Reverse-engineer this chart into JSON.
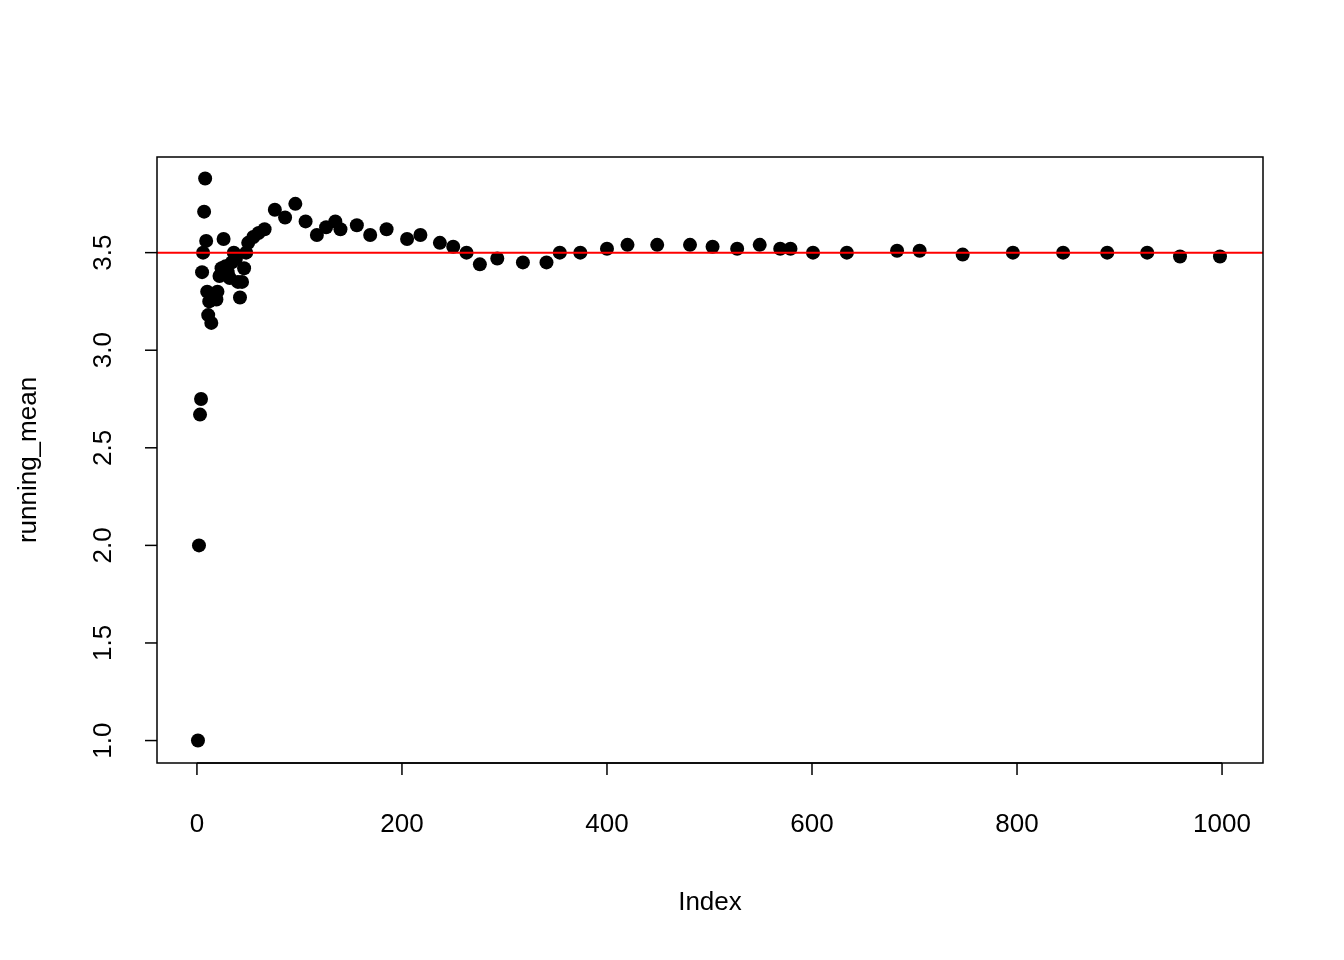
{
  "chart_data": {
    "type": "scatter",
    "xlabel": "Index",
    "ylabel": "running_mean",
    "marker": "circle",
    "xlim": [
      -38.96,
      1039.96
    ],
    "ylim": [
      0.885,
      3.99
    ],
    "xticks": [
      0,
      200,
      400,
      600,
      800,
      1000
    ],
    "yticks": [
      {
        "value": 1,
        "label": "1.0"
      },
      {
        "value": 1.5,
        "label": "1.5"
      },
      {
        "value": 2,
        "label": "2.0"
      },
      {
        "value": 2.5,
        "label": "2.5"
      },
      {
        "value": 3,
        "label": "3.0"
      },
      {
        "value": 3.5,
        "label": "3.5"
      }
    ],
    "ref_lines": [
      {
        "axis": "y",
        "value": 3.5,
        "color": "#ff0000"
      }
    ],
    "series": [
      {
        "color": "#000000",
        "x": [
          1,
          2,
          3,
          4,
          5,
          6,
          7,
          8,
          9,
          10,
          11,
          12,
          14,
          19,
          20,
          22,
          24,
          26,
          28,
          30,
          32,
          34,
          36,
          38,
          40,
          42,
          44,
          46,
          48,
          50,
          55,
          60,
          66,
          76,
          86,
          96,
          106,
          117,
          126,
          135,
          140,
          156,
          169,
          185,
          205,
          218,
          237,
          250,
          263,
          276,
          293,
          318,
          341,
          354,
          374,
          400,
          420,
          449,
          481,
          503,
          527,
          549,
          569,
          579,
          601,
          634,
          683,
          705,
          747,
          796,
          845,
          888,
          927,
          959,
          998
        ],
        "values": [
          1,
          2,
          2.67,
          2.75,
          3.4,
          3.5,
          3.71,
          3.88,
          3.56,
          3.3,
          3.18,
          3.25,
          3.14,
          3.26,
          3.3,
          3.38,
          3.42,
          3.57,
          3.43,
          3.4,
          3.37,
          3.45,
          3.5,
          3.47,
          3.35,
          3.27,
          3.35,
          3.42,
          3.5,
          3.55,
          3.58,
          3.6,
          3.62,
          3.72,
          3.68,
          3.75,
          3.66,
          3.59,
          3.63,
          3.66,
          3.62,
          3.64,
          3.59,
          3.62,
          3.57,
          3.59,
          3.55,
          3.53,
          3.5,
          3.44,
          3.47,
          3.45,
          3.45,
          3.5,
          3.5,
          3.52,
          3.54,
          3.54,
          3.54,
          3.53,
          3.52,
          3.54,
          3.52,
          3.52,
          3.5,
          3.5,
          3.51,
          3.51,
          3.49,
          3.5,
          3.5,
          3.5,
          3.5,
          3.48,
          3.48
        ]
      }
    ]
  }
}
